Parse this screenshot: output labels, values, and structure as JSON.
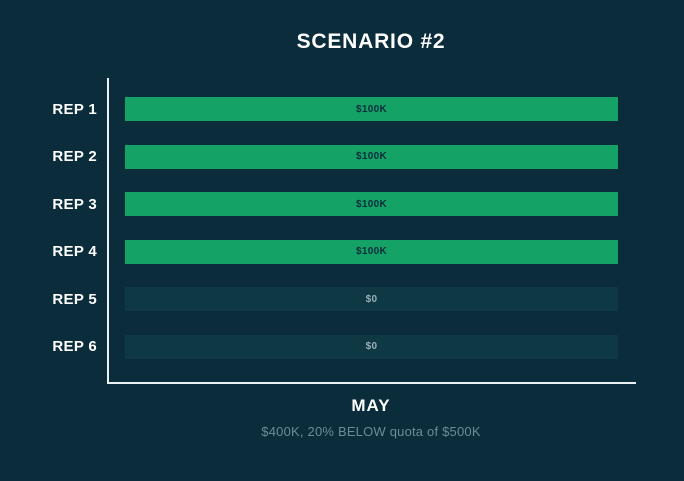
{
  "chart_data": {
    "type": "bar",
    "orientation": "horizontal",
    "title": "SCENARIO #2",
    "categories": [
      "REP 1",
      "REP 2",
      "REP 3",
      "REP 4",
      "REP 5",
      "REP 6"
    ],
    "values": [
      100000,
      100000,
      100000,
      100000,
      0,
      0
    ],
    "value_labels": [
      "$100K",
      "$100K",
      "$100K",
      "$100K",
      "$0",
      "$0"
    ],
    "xmax": 100000,
    "xlabel": "MAY",
    "subtitle": "$400K, 20% BELOW quota of $500K",
    "grid": false,
    "legend": false,
    "colors": {
      "background": "#0a2c3b",
      "bar_filled": "#15a266",
      "bar_empty_track": "#0e3844",
      "axis": "#e9f1f2",
      "title_text": "#ffffff",
      "category_label_text": "#ffffff",
      "subtitle_text": "#6e8b98",
      "value_on_filled": "#0b2d3c",
      "value_on_empty": "#9ab0ba"
    }
  }
}
